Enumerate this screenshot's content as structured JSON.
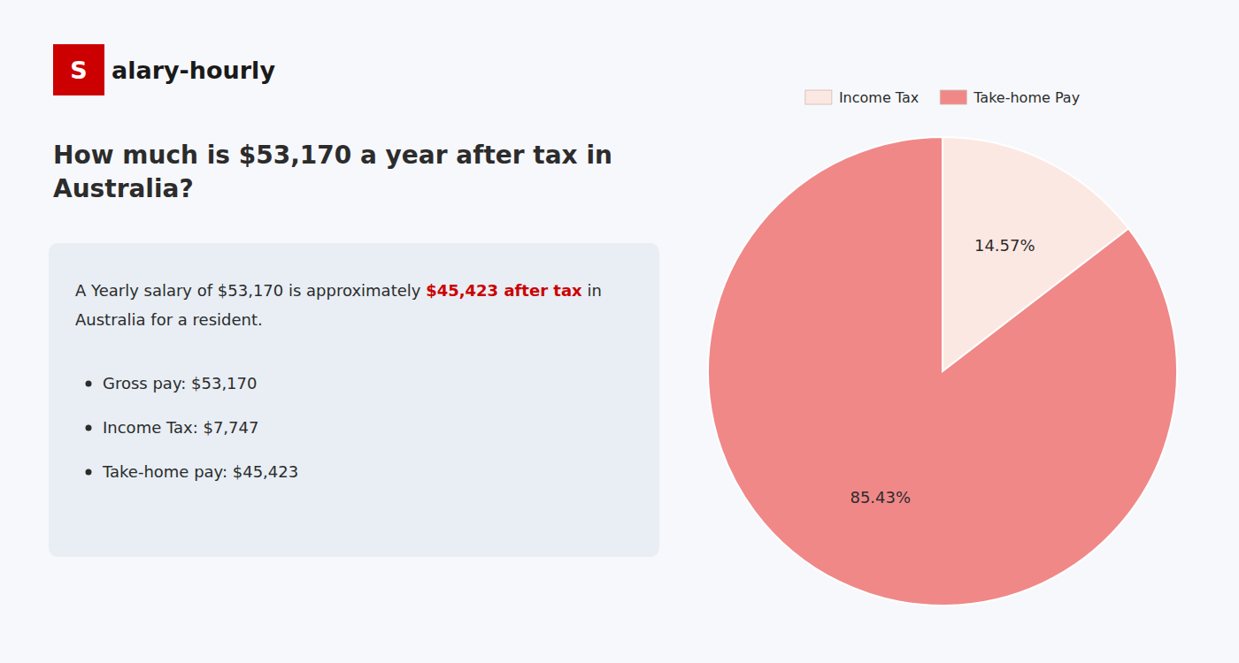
{
  "chart_data": {
    "type": "pie",
    "title": "How much is $53,170 a year after tax in Australia?",
    "categories": [
      "Income Tax",
      "Take-home Pay"
    ],
    "values": [
      14.57,
      85.43
    ],
    "value_labels": [
      "14.57%",
      "85.43%"
    ],
    "colors": [
      "#fce8e2",
      "#f08888"
    ],
    "data_labels": true,
    "legend": "top",
    "annotations": [
      {
        "text": "S",
        "color": "#cc0000"
      },
      {
        "text": "alary-hourly"
      },
      {
        "text": "A Yearly salary of $53,170 is approximately "
      },
      {
        "text": "$45,423 after tax",
        "color": "#cc0000"
      },
      {
        "text": " in"
      },
      {
        "text": "Australia for a resident."
      },
      {
        "text": "Gross pay: $53,170"
      },
      {
        "text": "Income Tax: $7,747"
      },
      {
        "text": "Take-home pay: $45,423"
      }
    ]
  }
}
